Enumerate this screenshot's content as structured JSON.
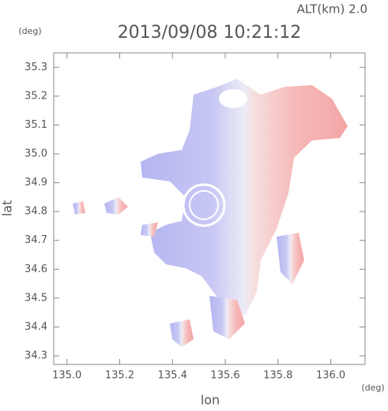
{
  "chart_data": {
    "type": "radar-map",
    "title": "2013/09/08 10:21:12",
    "annotation": "ALT(km)  2.0",
    "x_label": "lon",
    "x_unit": "(deg)",
    "y_label": "lat",
    "y_unit": "(deg)",
    "xlim": [
      134.95,
      136.13
    ],
    "ylim": [
      34.27,
      35.35
    ],
    "xticks": [
      {
        "value": 135,
        "label": "135.0"
      },
      135.2,
      135.4,
      135.6,
      135.8,
      {
        "value": 136,
        "label": "136.0"
      }
    ],
    "yticks": [
      34.3,
      34.4,
      34.5,
      34.6,
      34.7,
      34.8,
      34.9,
      {
        "value": 35,
        "label": "35.0"
      },
      35.1,
      35.2,
      35.3
    ]
  }
}
